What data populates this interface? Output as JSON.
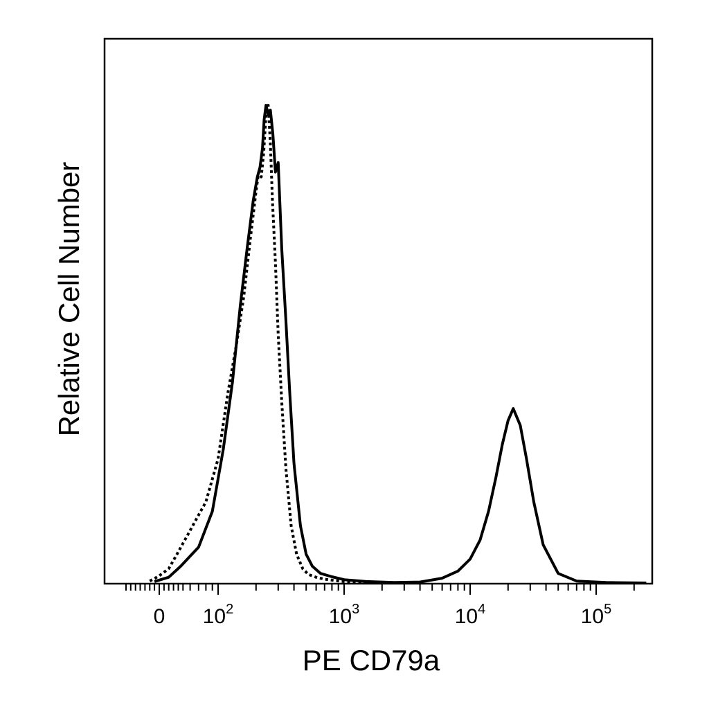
{
  "chart_data": {
    "type": "line",
    "xlabel": "PE CD79a",
    "ylabel": "Relative Cell Number",
    "x_scale": "biexponential",
    "xlim": [
      -80,
      250000
    ],
    "ylim": [
      0,
      1
    ],
    "grid": false,
    "legend": "none",
    "x_ticks": [
      {
        "value": 0,
        "base": "0",
        "exp": ""
      },
      {
        "value": 100,
        "base": "10",
        "exp": "2"
      },
      {
        "value": 1000,
        "base": "10",
        "exp": "3"
      },
      {
        "value": 10000,
        "base": "10",
        "exp": "4"
      },
      {
        "value": 100000,
        "base": "10",
        "exp": "5"
      }
    ],
    "series": [
      {
        "style": "solid",
        "color": "#000000",
        "x": [
          -10,
          20,
          45,
          70,
          90,
          110,
          130,
          150,
          170,
          190,
          205,
          215,
          225,
          232,
          240,
          250,
          260,
          272,
          285,
          300,
          320,
          345,
          370,
          400,
          450,
          500,
          560,
          650,
          800,
          1000,
          1500,
          2500,
          4000,
          6000,
          8000,
          10000,
          12000,
          14000,
          16000,
          18000,
          20000,
          22000,
          25000,
          28000,
          32000,
          38000,
          50000,
          70000,
          120000,
          250000
        ],
        "y": [
          0.003,
          0.012,
          0.035,
          0.075,
          0.15,
          0.28,
          0.42,
          0.58,
          0.7,
          0.8,
          0.85,
          0.87,
          0.91,
          0.97,
          1.0,
          0.98,
          0.99,
          0.94,
          0.86,
          0.88,
          0.7,
          0.55,
          0.4,
          0.25,
          0.12,
          0.06,
          0.035,
          0.02,
          0.013,
          0.007,
          0.003,
          0.001,
          0.002,
          0.01,
          0.025,
          0.05,
          0.09,
          0.15,
          0.22,
          0.29,
          0.34,
          0.365,
          0.33,
          0.26,
          0.17,
          0.08,
          0.02,
          0.004,
          0.001,
          0.0
        ]
      },
      {
        "style": "dotted",
        "color": "#000000",
        "x": [
          -20,
          0,
          20,
          40,
          60,
          80,
          100,
          120,
          140,
          160,
          180,
          200,
          210,
          220,
          230,
          240,
          250,
          260,
          270,
          285,
          300,
          320,
          345,
          380,
          420,
          470,
          520,
          600,
          700,
          850,
          1000,
          1300,
          2000,
          3000
        ],
        "y": [
          0.004,
          0.015,
          0.03,
          0.065,
          0.11,
          0.17,
          0.26,
          0.4,
          0.5,
          0.6,
          0.72,
          0.82,
          0.86,
          0.85,
          0.9,
          0.98,
          1.0,
          0.92,
          0.8,
          0.67,
          0.52,
          0.38,
          0.24,
          0.12,
          0.06,
          0.03,
          0.018,
          0.012,
          0.008,
          0.005,
          0.003,
          0.002,
          0.001,
          0.0
        ]
      }
    ]
  }
}
